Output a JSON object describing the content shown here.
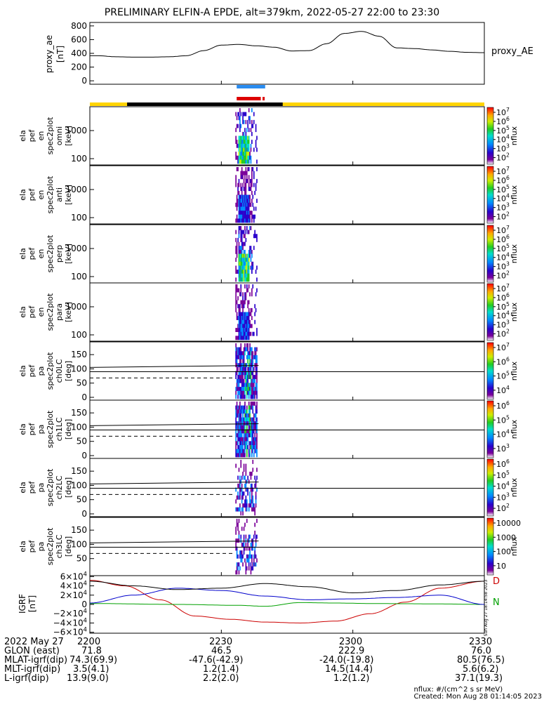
{
  "title": "PRELIMINARY ELFIN-A EPDE, alt=379km, 2022-05-27 22:00 to 23:30",
  "chart_data": [
    {
      "type": "line",
      "panel": "proxy_ae",
      "ylabel": [
        "proxy_ae",
        "[nT]"
      ],
      "legend": "proxy_AE",
      "ylim": [
        -50,
        850
      ],
      "yticks": [
        "800",
        "600",
        "400",
        "200",
        "0"
      ],
      "x_minutes": [
        0,
        2,
        6,
        10,
        14,
        18,
        22,
        26,
        30,
        34,
        38,
        42,
        46,
        50,
        54,
        58,
        62,
        66,
        70,
        74,
        78,
        82,
        86,
        90
      ],
      "values": [
        365,
        365,
        350,
        345,
        345,
        350,
        365,
        440,
        520,
        530,
        510,
        490,
        435,
        440,
        540,
        690,
        720,
        650,
        480,
        470,
        450,
        430,
        415,
        410
      ]
    },
    {
      "type": "heatmap",
      "panels": [
        {
          "name": [
            "ela",
            "pef",
            "en",
            "spec2plot",
            "omni",
            "[keV]"
          ],
          "yticks": [
            "1000",
            "100"
          ],
          "cbar_ticks": [
            "10^7",
            "10^6",
            "10^5",
            "10^4",
            "10^3",
            "10^2"
          ],
          "cbar_label": "nflux"
        },
        {
          "name": [
            "ela",
            "pef",
            "en",
            "spec2plot",
            "anti",
            "[keV]"
          ],
          "yticks": [
            "1000",
            "100"
          ],
          "cbar_ticks": [
            "10^7",
            "10^6",
            "10^5",
            "10^4",
            "10^3",
            "10^2"
          ],
          "cbar_label": "nflux"
        },
        {
          "name": [
            "ela",
            "pef",
            "en",
            "spec2plot",
            "perp",
            "[keV]"
          ],
          "yticks": [
            "1000",
            "100"
          ],
          "cbar_ticks": [
            "10^7",
            "10^6",
            "10^5",
            "10^4",
            "10^3",
            "10^2"
          ],
          "cbar_label": "nflux"
        },
        {
          "name": [
            "ela",
            "pef",
            "en",
            "spec2plot",
            "para",
            "[keV]"
          ],
          "yticks": [
            "1000",
            "100"
          ],
          "cbar_ticks": [
            "10^7",
            "10^6",
            "10^5",
            "10^4",
            "10^3",
            "10^2"
          ],
          "cbar_label": "nflux"
        },
        {
          "name": [
            "ela",
            "pef",
            "pa",
            "spec2plot",
            "ch0LC",
            "[deg]"
          ],
          "yticks": [
            "150",
            "100",
            "50",
            "0"
          ],
          "cbar_ticks": [
            "10^7",
            "10^6",
            "10^5",
            "10^4"
          ],
          "cbar_label": "nflux"
        },
        {
          "name": [
            "ela",
            "pef",
            "pa",
            "spec2plot",
            "ch1LC",
            "[deg]"
          ],
          "yticks": [
            "150",
            "100",
            "50",
            "0"
          ],
          "cbar_ticks": [
            "10^6",
            "10^5",
            "10^4",
            "10^3"
          ],
          "cbar_label": "nflux"
        },
        {
          "name": [
            "ela",
            "pef",
            "pa",
            "spec2plot",
            "ch2LC",
            "[deg]"
          ],
          "yticks": [
            "150",
            "100",
            "50",
            "0"
          ],
          "cbar_ticks": [
            "10^6",
            "10^5",
            "10^4",
            "10^3",
            "10^2"
          ],
          "cbar_label": "nflux"
        },
        {
          "name": [
            "ela",
            "pef",
            "pa",
            "spec2plot",
            "ch3LC",
            "[deg]"
          ],
          "yticks": [
            "150",
            "100",
            "50"
          ],
          "cbar_ticks": [
            "10000",
            "1000",
            "100",
            "10"
          ],
          "cbar_label": "nflux"
        }
      ]
    },
    {
      "type": "line",
      "panel": "IGRF",
      "ylabel": [
        "IGRF",
        "[nT]"
      ],
      "yticks": [
        "6×10^4",
        "4×10^4",
        "2×10^4",
        "0",
        "−2×10^4",
        "−4×10^4",
        "−6×10^4"
      ],
      "ylim": [
        -62000,
        62000
      ],
      "legend": [
        "D",
        "N"
      ],
      "series": [
        {
          "name": "D",
          "color": "#cc0000",
          "x_minutes": [
            0,
            8,
            16,
            24,
            32,
            40,
            48,
            56,
            64,
            72,
            80,
            90
          ],
          "values": [
            52000,
            40000,
            10000,
            -25000,
            -32000,
            -38000,
            -40000,
            -36000,
            -20000,
            5000,
            35000,
            50000
          ]
        },
        {
          "name": "N",
          "color": "#00a000",
          "x_minutes": [
            0,
            20,
            34,
            40,
            48,
            56,
            64,
            72,
            80,
            90
          ],
          "values": [
            2000,
            0,
            -2000,
            -4000,
            4000,
            3000,
            2000,
            1500,
            1000,
            0
          ]
        },
        {
          "color": "#0000cc",
          "x_minutes": [
            0,
            10,
            20,
            30,
            40,
            50,
            60,
            70,
            80,
            90
          ],
          "values": [
            3000,
            20000,
            35000,
            30000,
            18000,
            10000,
            12000,
            15000,
            20000,
            0
          ]
        },
        {
          "color": "#000000",
          "x_minutes": [
            0,
            10,
            20,
            30,
            40,
            50,
            60,
            70,
            80,
            90
          ],
          "values": [
            50000,
            40000,
            32000,
            35000,
            45000,
            38000,
            25000,
            30000,
            42000,
            50000
          ]
        }
      ]
    }
  ],
  "footer": {
    "rows": [
      {
        "label": "2022 May 27",
        "values": [
          "2200",
          "2230",
          "2300",
          "2330"
        ]
      },
      {
        "label": "GLON (east)",
        "values": [
          "71.8",
          "46.5",
          "222.9",
          "76.0"
        ]
      },
      {
        "label": "MLAT-igrf(dip)",
        "values": [
          "74.3(69.9)",
          "-47.6(-42.9)",
          "-24.0(-19.8)",
          "80.5(76.5)"
        ]
      },
      {
        "label": "MLT-igrf(dip)",
        "values": [
          "3.5(4.1)",
          "1.2(1.4)",
          "14.5(14.4)",
          "5.6(6.2)"
        ]
      },
      {
        "label": "L-igrf(dip)",
        "values": [
          "13.9(9.0)",
          "2.2(2.0)",
          "1.2(1.2)",
          "37.1(19.3)"
        ]
      }
    ],
    "credit_units": "nflux: #/(cm^2 s sr MeV)",
    "credit_created": "Created: Mon Aug 28 01:14:05 2023",
    "side_stamp": "Sun Aug 27 18:14:58 2023"
  },
  "colors": {
    "sunlit": "#ffd400",
    "shadow": "#000000",
    "bar_blue": "#2a8cf0",
    "bar_red": "#dd0000"
  }
}
